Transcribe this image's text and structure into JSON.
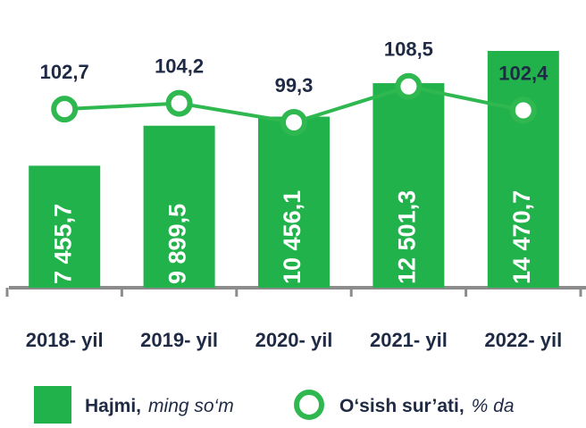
{
  "chart_data": {
    "type": "bar-line",
    "categories": [
      "2018- yil",
      "2019- yil",
      "2020- yil",
      "2021- yil",
      "2022- yil"
    ],
    "series": [
      {
        "name": "Hajmi,",
        "unit": "ming so‘m",
        "type": "bar",
        "color": "#22b24c",
        "values": [
          7455.7,
          9899.5,
          10456.1,
          12501.3,
          14470.7
        ],
        "value_labels": [
          "7 455,7",
          "9 899,5",
          "10 456,1",
          "12 501,3",
          "14 470,7"
        ]
      },
      {
        "name": "O‘sish sur’ati,",
        "unit": "% da",
        "type": "line",
        "axis": "y2",
        "color": "#2fb84f",
        "values": [
          102.7,
          104.2,
          99.3,
          108.5,
          102.4
        ],
        "value_labels": [
          "102,7",
          "104,2",
          "99,3",
          "108,5",
          "102,4"
        ]
      }
    ],
    "ylim": [
      0,
      16000
    ],
    "y2lim": [
      57,
      124
    ]
  }
}
